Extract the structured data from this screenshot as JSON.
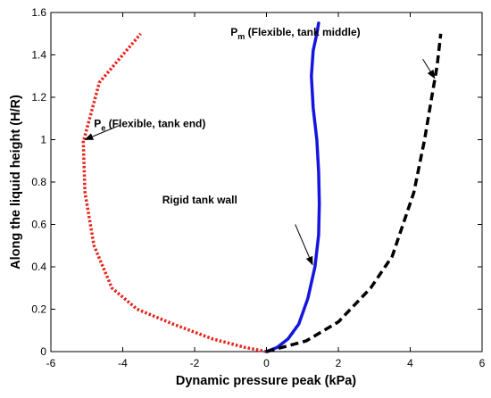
{
  "chart_data": {
    "type": "line",
    "title": "",
    "xlabel": "Dynamic pressure peak (kPa)",
    "ylabel": "Along the liquid height (H/R)",
    "xlim": [
      -6,
      6
    ],
    "ylim": [
      0,
      1.6
    ],
    "xticks": [
      "-6",
      "-4",
      "-2",
      "0",
      "2",
      "4",
      "6"
    ],
    "yticks": [
      "0",
      "0.2",
      "0.4",
      "0.6",
      "0.8",
      "1",
      "1.2",
      "1.4",
      "1.6"
    ],
    "grid": false,
    "series": [
      {
        "id": "pe",
        "color": "#e8241c",
        "style": "dotted",
        "x": [
          0,
          -0.6,
          -1.5,
          -2.6,
          -3.6,
          -4.3,
          -4.8,
          -5.05,
          -5.1,
          -5.08,
          -4.65,
          -3.5
        ],
        "y": [
          0,
          0.02,
          0.06,
          0.13,
          0.2,
          0.3,
          0.5,
          0.75,
          1.0,
          1.0,
          1.27,
          1.5
        ]
      },
      {
        "id": "rigid",
        "color": "#1515e0",
        "style": "solid",
        "x": [
          0,
          0.3,
          0.6,
          0.9,
          1.15,
          1.35,
          1.45,
          1.47,
          1.45,
          1.4,
          1.3,
          1.25,
          1.3,
          1.4,
          1.45
        ],
        "y": [
          0,
          0.02,
          0.06,
          0.13,
          0.25,
          0.4,
          0.55,
          0.7,
          0.85,
          1.0,
          1.15,
          1.3,
          1.42,
          1.5,
          1.55
        ]
      },
      {
        "id": "pm",
        "color": "#000000",
        "style": "dashed",
        "x": [
          0,
          1.1,
          2.0,
          2.9,
          3.5,
          4.1,
          4.4,
          4.6,
          4.75,
          4.85
        ],
        "y": [
          0,
          0.05,
          0.14,
          0.3,
          0.45,
          0.75,
          1.0,
          1.2,
          1.35,
          1.5
        ]
      }
    ],
    "annotations": [
      {
        "id": "pe",
        "symbol": "P",
        "sub": "e",
        "text": " (Flexible, tank end)",
        "text_x": -4.8,
        "text_y": 1.06,
        "arrow_from": [
          -4.05,
          1.07
        ],
        "arrow_to": [
          -5.05,
          1.0
        ]
      },
      {
        "id": "pm",
        "symbol": "P",
        "sub": "m",
        "text": " (Flexible, tank middle)",
        "text_x": -1.0,
        "text_y": 1.49,
        "arrow_from": [
          4.35,
          1.38
        ],
        "arrow_to": [
          4.68,
          1.29
        ]
      },
      {
        "id": "rigid",
        "symbol": "",
        "sub": "",
        "text": "Rigid tank wall",
        "text_x": -2.9,
        "text_y": 0.7,
        "arrow_from": [
          0.8,
          0.6
        ],
        "arrow_to": [
          1.28,
          0.41
        ]
      }
    ]
  }
}
